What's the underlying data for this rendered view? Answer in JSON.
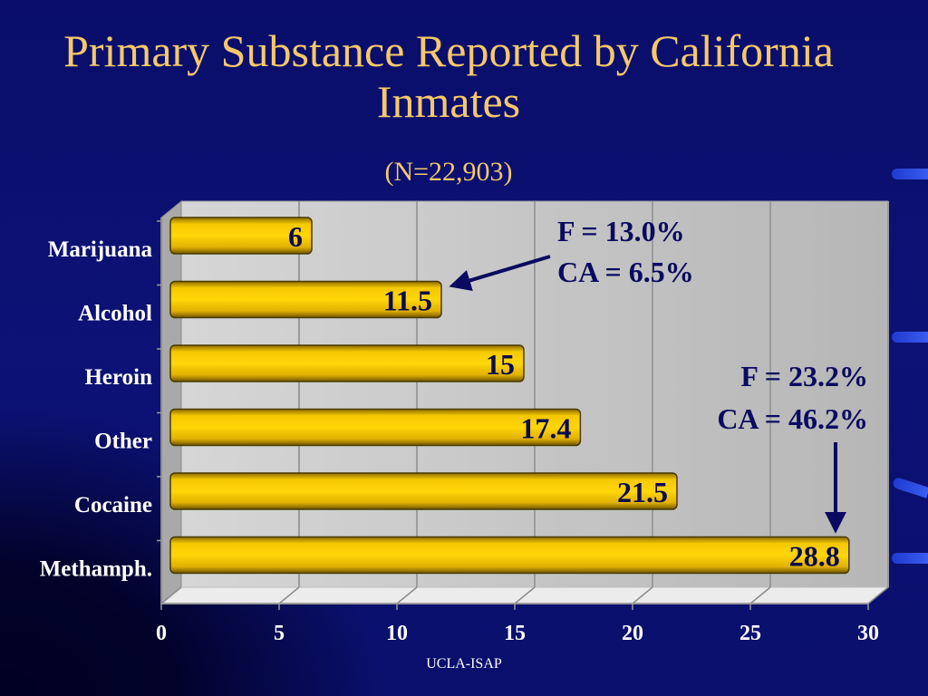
{
  "slide": {
    "title": "Primary Substance Reported by California Inmates",
    "subtitle": "(N=22,903)",
    "footer": "UCLA-ISAP"
  },
  "annotations": [
    {
      "line1": "F = 13.0%",
      "line2": "CA = 6.5%",
      "points_to": "Alcohol"
    },
    {
      "line1": "F = 23.2%",
      "line2": "CA = 46.2%",
      "points_to": "Methamph."
    }
  ],
  "colors": {
    "background": "#0b0f6e",
    "title": "#f6c86a",
    "bar": "#f0c000",
    "bar_edge": "#6b5200",
    "plot_area": "#c8c8c8",
    "label_text": "#0a0a50"
  },
  "chart_data": {
    "type": "bar",
    "orientation": "horizontal",
    "categories": [
      "Marijuana",
      "Alcohol",
      "Heroin",
      "Other",
      "Cocaine",
      "Methamph."
    ],
    "values": [
      6,
      11.5,
      15,
      17.4,
      21.5,
      28.8
    ],
    "data_labels": [
      "6",
      "11.5",
      "15",
      "17.4",
      "21.5",
      "28.8"
    ],
    "x_ticks": [
      "0",
      "5",
      "10",
      "15",
      "20",
      "25",
      "30"
    ],
    "xlim": [
      0,
      30
    ],
    "grid": true,
    "legend": "none"
  }
}
